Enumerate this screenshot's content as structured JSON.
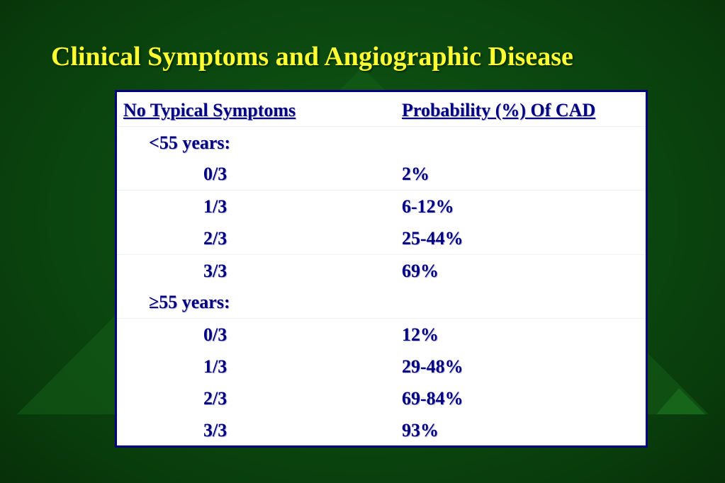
{
  "slide": {
    "title": "Clinical Symptoms and Angiographic Disease"
  },
  "table": {
    "headers": [
      "No Typical Symptoms",
      "Probability (%) Of CAD"
    ],
    "rows": [
      {
        "label": "<55 years:",
        "value": ""
      },
      {
        "label": "0/3",
        "value": "2%"
      },
      {
        "label": "1/3",
        "value": "6-12%"
      },
      {
        "label": "2/3",
        "value": "25-44%"
      },
      {
        "label": "3/3",
        "value": "69%"
      },
      {
        "label": "≥55 years:",
        "value": ""
      },
      {
        "label": "0/3",
        "value": "12%"
      },
      {
        "label": "1/3",
        "value": "29-48%"
      },
      {
        "label": "2/3",
        "value": "69-84%"
      },
      {
        "label": "3/3",
        "value": "93%"
      }
    ]
  },
  "colors": {
    "background": "#0b4a10",
    "title": "#ffff33",
    "table_text": "#000080",
    "table_border": "#000080"
  }
}
